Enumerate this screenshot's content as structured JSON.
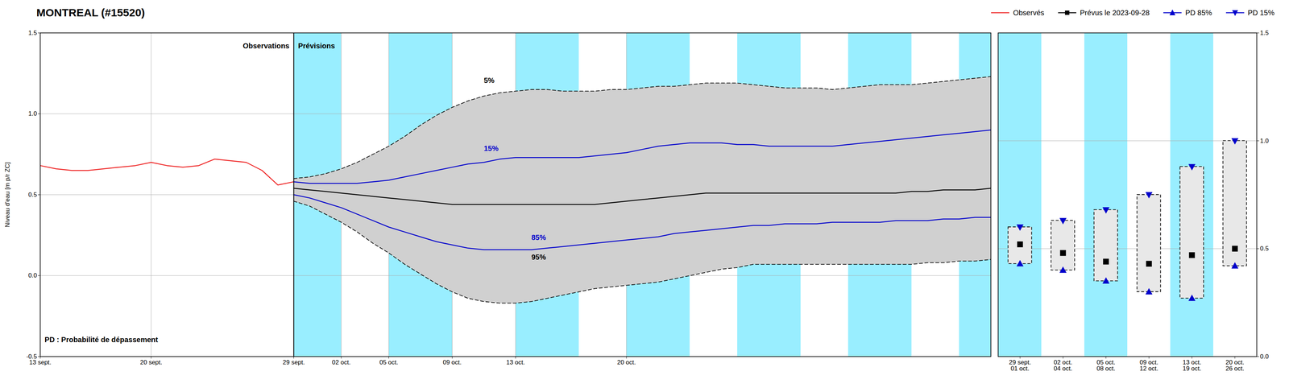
{
  "chart_data": [
    {
      "type": "line",
      "title": "MONTREAL (#15520)",
      "ylabel": "Niveau d'eau [m p/r ZC]",
      "xlim": [
        0,
        60
      ],
      "xticks": [
        {
          "value": 0,
          "label": "13 sept."
        },
        {
          "value": 7,
          "label": "20 sept."
        },
        {
          "value": 16,
          "label": "29 sept."
        },
        {
          "value": 19,
          "label": "02 oct."
        },
        {
          "value": 22,
          "label": "05 oct."
        },
        {
          "value": 26,
          "label": "09 oct."
        },
        {
          "value": 30,
          "label": "13 oct."
        },
        {
          "value": 37,
          "label": "20 oct."
        }
      ],
      "ylim": [
        -0.5,
        1.5
      ],
      "yticks": [
        -0.5,
        {
          "value": 0,
          "label": "0.0"
        },
        0.5,
        {
          "value": 1,
          "label": "1.0"
        },
        1.5
      ],
      "grid": true,
      "bands": [
        {
          "color": "#99eeff",
          "ranges": [
            [
              16,
              60
            ]
          ]
        },
        {
          "color": "#ffffff",
          "ranges": [
            [
              19,
              22
            ],
            [
              26,
              30
            ],
            [
              34,
              37
            ],
            [
              41,
              44
            ],
            [
              48,
              51
            ],
            [
              55,
              58
            ]
          ]
        }
      ],
      "vlines": [
        16
      ],
      "series": [
        {
          "name": "Observés",
          "color": "#ee2222",
          "x": [
            0,
            1,
            2,
            3,
            4,
            5,
            6,
            7,
            8,
            9,
            10,
            11,
            12,
            13,
            14,
            15,
            16
          ],
          "values": [
            0.68,
            0.66,
            0.65,
            0.65,
            0.66,
            0.67,
            0.68,
            0.7,
            0.68,
            0.67,
            0.68,
            0.72,
            0.71,
            0.7,
            0.65,
            0.56,
            0.58
          ]
        },
        {
          "type": "band",
          "color": "#d0d0d0",
          "line_style": "dashed",
          "x": [
            16,
            17,
            18,
            19,
            20,
            21,
            22,
            23,
            24,
            25,
            26,
            27,
            28,
            29,
            30,
            31,
            32,
            33,
            34,
            35,
            36,
            37,
            38,
            39,
            40,
            41,
            42,
            43,
            44,
            45,
            46,
            47,
            48,
            49,
            50,
            51,
            52,
            53,
            54,
            55,
            56,
            57,
            58,
            59,
            60
          ],
          "upper": [
            0.6,
            0.61,
            0.63,
            0.66,
            0.7,
            0.75,
            0.8,
            0.86,
            0.93,
            0.99,
            1.04,
            1.08,
            1.11,
            1.13,
            1.14,
            1.15,
            1.15,
            1.14,
            1.14,
            1.14,
            1.15,
            1.15,
            1.16,
            1.17,
            1.17,
            1.18,
            1.19,
            1.19,
            1.19,
            1.18,
            1.17,
            1.16,
            1.16,
            1.16,
            1.15,
            1.16,
            1.17,
            1.18,
            1.18,
            1.18,
            1.19,
            1.2,
            1.21,
            1.22,
            1.23
          ],
          "lower": [
            0.46,
            0.43,
            0.38,
            0.33,
            0.27,
            0.2,
            0.14,
            0.07,
            0.01,
            -0.05,
            -0.1,
            -0.14,
            -0.16,
            -0.17,
            -0.17,
            -0.16,
            -0.14,
            -0.12,
            -0.1,
            -0.08,
            -0.07,
            -0.06,
            -0.05,
            -0.04,
            -0.02,
            0.0,
            0.02,
            0.04,
            0.05,
            0.07,
            0.07,
            0.07,
            0.07,
            0.07,
            0.07,
            0.07,
            0.07,
            0.07,
            0.07,
            0.07,
            0.08,
            0.08,
            0.09,
            0.09,
            0.1
          ]
        },
        {
          "color": "#0000cc",
          "x": [
            16,
            17,
            18,
            19,
            20,
            21,
            22,
            23,
            24,
            25,
            26,
            27,
            28,
            29,
            30,
            31,
            32,
            33,
            34,
            35,
            36,
            37,
            38,
            39,
            40,
            41,
            42,
            43,
            44,
            45,
            46,
            47,
            48,
            49,
            50,
            51,
            52,
            53,
            54,
            55,
            56,
            57,
            58,
            59,
            60
          ],
          "values": [
            0.58,
            0.57,
            0.57,
            0.57,
            0.57,
            0.58,
            0.59,
            0.61,
            0.63,
            0.65,
            0.67,
            0.69,
            0.7,
            0.72,
            0.73,
            0.73,
            0.73,
            0.73,
            0.73,
            0.74,
            0.75,
            0.76,
            0.78,
            0.8,
            0.81,
            0.82,
            0.82,
            0.82,
            0.81,
            0.81,
            0.8,
            0.8,
            0.8,
            0.8,
            0.8,
            0.81,
            0.82,
            0.83,
            0.84,
            0.85,
            0.86,
            0.87,
            0.88,
            0.89,
            0.9
          ]
        },
        {
          "color": "#000000",
          "x": [
            16,
            17,
            18,
            19,
            20,
            21,
            22,
            23,
            24,
            25,
            26,
            27,
            28,
            29,
            30,
            31,
            32,
            33,
            34,
            35,
            36,
            37,
            38,
            39,
            40,
            41,
            42,
            43,
            44,
            45,
            46,
            47,
            48,
            49,
            50,
            51,
            52,
            53,
            54,
            55,
            56,
            57,
            58,
            59,
            60
          ],
          "values": [
            0.54,
            0.53,
            0.52,
            0.51,
            0.5,
            0.49,
            0.48,
            0.47,
            0.46,
            0.45,
            0.44,
            0.44,
            0.44,
            0.44,
            0.44,
            0.44,
            0.44,
            0.44,
            0.44,
            0.44,
            0.45,
            0.46,
            0.47,
            0.48,
            0.49,
            0.5,
            0.51,
            0.51,
            0.51,
            0.51,
            0.51,
            0.51,
            0.51,
            0.51,
            0.51,
            0.51,
            0.51,
            0.51,
            0.51,
            0.52,
            0.52,
            0.53,
            0.53,
            0.53,
            0.54
          ]
        },
        {
          "color": "#0000cc",
          "x": [
            16,
            17,
            18,
            19,
            20,
            21,
            22,
            23,
            24,
            25,
            26,
            27,
            28,
            29,
            30,
            31,
            32,
            33,
            34,
            35,
            36,
            37,
            38,
            39,
            40,
            41,
            42,
            43,
            44,
            45,
            46,
            47,
            48,
            49,
            50,
            51,
            52,
            53,
            54,
            55,
            56,
            57,
            58,
            59,
            60
          ],
          "values": [
            0.5,
            0.48,
            0.45,
            0.42,
            0.38,
            0.34,
            0.3,
            0.27,
            0.24,
            0.21,
            0.19,
            0.17,
            0.16,
            0.16,
            0.16,
            0.16,
            0.17,
            0.18,
            0.19,
            0.2,
            0.21,
            0.22,
            0.23,
            0.24,
            0.26,
            0.27,
            0.28,
            0.29,
            0.3,
            0.31,
            0.31,
            0.32,
            0.32,
            0.32,
            0.33,
            0.33,
            0.33,
            0.33,
            0.34,
            0.34,
            0.34,
            0.35,
            0.35,
            0.36,
            0.36
          ]
        }
      ],
      "annotations": [
        {
          "text": "5%",
          "x": 28,
          "y": 1.19,
          "color": "#000000"
        },
        {
          "text": "15%",
          "x": 28,
          "y": 0.77,
          "color": "#0000cc"
        },
        {
          "text": "85%",
          "x": 31,
          "y": 0.22,
          "color": "#0000cc"
        },
        {
          "text": "95%",
          "x": 31,
          "y": 0.1,
          "color": "#000000"
        },
        {
          "text": "Observations",
          "x": 16,
          "y": 1.42,
          "align": "right"
        },
        {
          "text": "Prévisions",
          "x": 16,
          "y": 1.42,
          "align": "left"
        },
        {
          "text": "PD : Probabilité de dépassement"
        }
      ]
    },
    {
      "type": "box",
      "categories": [
        "29 sept.\n01 oct.",
        "02 oct.\n04 oct.",
        "05 oct.\n08 oct.",
        "09 oct.\n12 oct.",
        "13 oct.\n19 oct.",
        "20 oct.\n26 oct."
      ],
      "ylim": [
        0.0,
        1.5
      ],
      "yticks": [
        {
          "value": 0,
          "label": "0.0"
        },
        0.5,
        {
          "value": 1,
          "label": "1.0"
        },
        1.5
      ],
      "grid": true,
      "highlight": [
        true,
        false,
        true,
        false,
        true,
        false
      ],
      "highlight_color": "#99eeff",
      "box_color": "#e8e8e8",
      "series": [
        {
          "name": "Prévus le 2023-09-28",
          "color": "#000000",
          "marker": "square",
          "values": [
            0.52,
            0.48,
            0.44,
            0.43,
            0.47,
            0.5
          ]
        },
        {
          "name": "PD 85%",
          "color": "#0000cc",
          "marker": "triangle-up",
          "values": [
            0.43,
            0.4,
            0.35,
            0.3,
            0.27,
            0.42
          ]
        },
        {
          "name": "PD 15%",
          "color": "#0000cc",
          "marker": "triangle-down",
          "values": [
            0.6,
            0.63,
            0.68,
            0.75,
            0.88,
            1.0
          ]
        }
      ],
      "legend": "upper right"
    }
  ]
}
